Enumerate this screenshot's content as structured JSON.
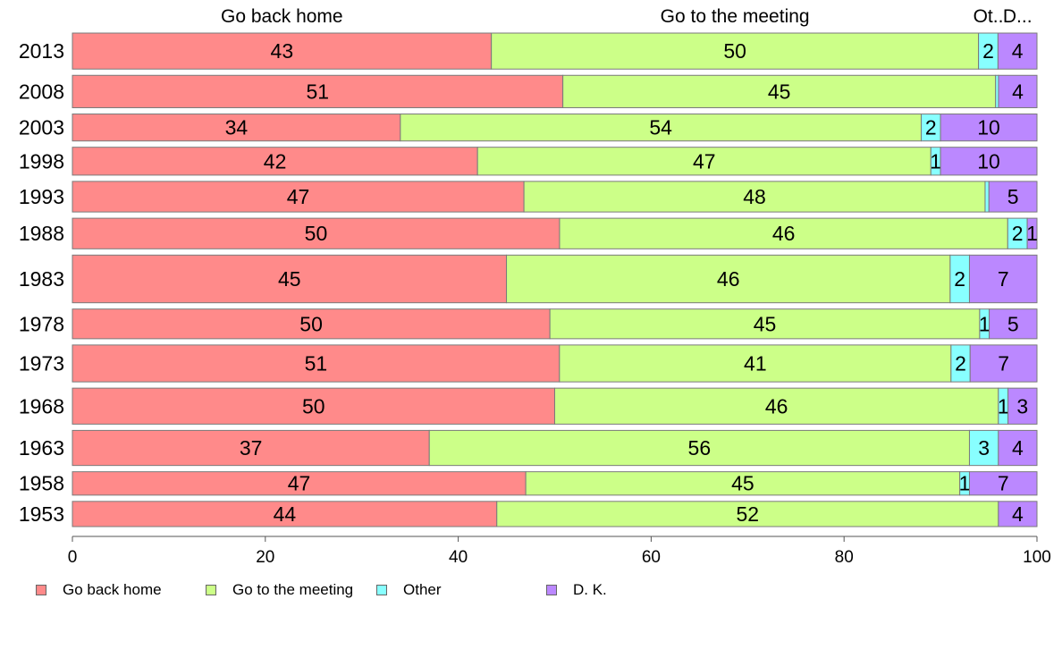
{
  "chart_data": {
    "type": "bar",
    "orientation": "horizontal",
    "stacked": true,
    "categories": [
      "2013",
      "2008",
      "2003",
      "1998",
      "1993",
      "1988",
      "1983",
      "1978",
      "1973",
      "1968",
      "1963",
      "1958",
      "1953"
    ],
    "series": [
      {
        "name": "Go back home",
        "color": "#FF8A8A",
        "values": [
          43,
          51,
          34,
          42,
          47,
          50,
          45,
          50,
          51,
          50,
          37,
          47,
          44
        ]
      },
      {
        "name": "Go to the meeting",
        "color": "#CCFF88",
        "values": [
          50,
          45,
          54,
          47,
          48,
          46,
          46,
          45,
          41,
          46,
          56,
          45,
          52
        ]
      },
      {
        "name": "Other",
        "color": "#88FFFF",
        "values": [
          2,
          0.3,
          2,
          1,
          0.4,
          2,
          2,
          1,
          2,
          1,
          3,
          1,
          0
        ]
      },
      {
        "name": "D. K.",
        "color": "#BB88FF",
        "values": [
          4,
          4,
          10,
          10,
          5,
          1,
          7,
          5,
          7,
          3,
          4,
          7,
          4
        ]
      }
    ],
    "segment_labels": [
      [
        "43",
        "50",
        "2",
        "4"
      ],
      [
        "51",
        "45",
        "",
        "4"
      ],
      [
        "34",
        "54",
        "2",
        "10"
      ],
      [
        "42",
        "47",
        "1",
        "10"
      ],
      [
        "47",
        "48",
        "",
        "5"
      ],
      [
        "50",
        "46",
        "2",
        "1"
      ],
      [
        "45",
        "46",
        "2",
        "7"
      ],
      [
        "50",
        "45",
        "1",
        "5"
      ],
      [
        "51",
        "41",
        "2",
        "7"
      ],
      [
        "50",
        "46",
        "1",
        "3"
      ],
      [
        "37",
        "56",
        "3",
        "4"
      ],
      [
        "47",
        "45",
        "1",
        "7"
      ],
      [
        "44",
        "52",
        "",
        "4"
      ]
    ],
    "column_headers": [
      "Go back home",
      "Go to the meeting",
      "Ot..",
      "D..."
    ],
    "xlim": [
      0,
      100
    ],
    "xticks": [
      "0",
      "20",
      "40",
      "60",
      "80",
      "100"
    ],
    "grid": false,
    "legend_position": "bottom-left"
  }
}
